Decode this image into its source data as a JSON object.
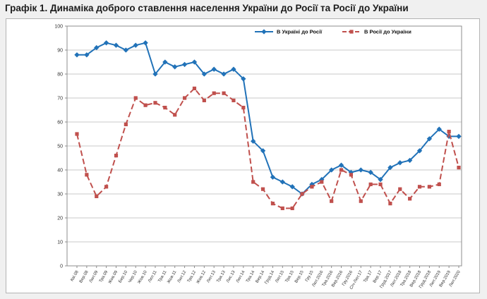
{
  "page": {
    "title": "Графік 1. Динаміка доброго ставлення населення України до Росії та Росії до України"
  },
  "chart_data": {
    "type": "line",
    "title": "",
    "xlabel": "",
    "ylabel": "",
    "ylim": [
      0,
      100
    ],
    "ytick_step": 10,
    "grid": true,
    "legend_position": "top-inside",
    "colors": {
      "ukraine_series": "#2172B8",
      "russia_series": "#C0504D",
      "gridline": "#c9c9c9",
      "plot_border": "#8c8c8c",
      "tick_text": "#333333"
    },
    "categories": [
      "Кві.08",
      "Вер.08",
      "Лют.09",
      "Тра.09",
      "Жов.09",
      "Бер.10",
      "Чер.10",
      "Жов.10",
      "Лют.11",
      "Тра.11",
      "Жов.11",
      "Лют.12",
      "Тра.12",
      "Жов.12",
      "Лют.13",
      "Тра.13",
      "Лис.13",
      "Лют.14",
      "Тра.14",
      "Вер.14",
      "Груд.14",
      "Лют.15",
      "Тра.15",
      "Вер.15",
      "Гру.15",
      "Лют.2016",
      "Тра.2016",
      "Вер.2016",
      "Гру.2016",
      "Січ-Лют.17",
      "Тра.17",
      "Вер.17",
      "Груд.2017",
      "Лют.2018",
      "Тра.2018",
      "Вер.2018",
      "Груд.2018",
      "Лют.2019",
      "Вер.2019",
      "Лют.2020"
    ],
    "yticks": [
      0,
      10,
      20,
      30,
      40,
      50,
      60,
      70,
      80,
      90,
      100
    ],
    "series": [
      {
        "name": "В Україні  до Росії",
        "color": "#2172B8",
        "marker": "diamond",
        "line_style": "solid",
        "values": [
          88,
          88,
          91,
          93,
          92,
          90,
          92,
          93,
          80,
          85,
          83,
          84,
          85,
          80,
          82,
          80,
          82,
          78,
          52,
          48,
          37,
          35,
          33,
          30,
          34,
          36,
          40,
          42,
          39,
          40,
          39,
          36,
          41,
          43,
          44,
          48,
          53,
          57,
          54,
          54
        ]
      },
      {
        "name": "В Росії до України",
        "color": "#C0504D",
        "marker": "square",
        "line_style": "dashed",
        "values": [
          55,
          38,
          29,
          33,
          46,
          59,
          70,
          67,
          68,
          66,
          63,
          70,
          74,
          69,
          72,
          72,
          69,
          66,
          35,
          32,
          26,
          24,
          24,
          30,
          33,
          35,
          27,
          40,
          38,
          27,
          34,
          34,
          26,
          32,
          28,
          33,
          33,
          34,
          56,
          41
        ]
      }
    ]
  }
}
